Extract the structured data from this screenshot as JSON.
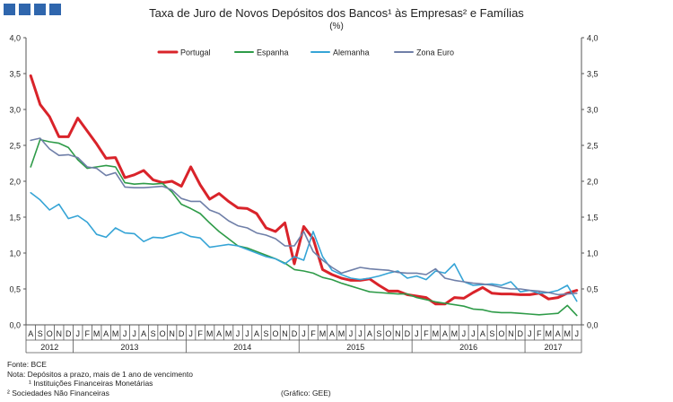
{
  "brand": {
    "logo": "GEE"
  },
  "chart_data": {
    "type": "line",
    "title": "Taxa de Juro de Novos Depósitos dos Bancos¹ às Empresas² e Famílias",
    "subtitle": "(%)",
    "ylim": [
      0,
      4
    ],
    "y_ticks": [
      "0,0",
      "0,5",
      "1,0",
      "1,5",
      "2,0",
      "2,5",
      "3,0",
      "3,5",
      "4,0"
    ],
    "month_labels": [
      "A",
      "S",
      "O",
      "N",
      "D",
      "J",
      "F",
      "M",
      "A",
      "M",
      "J",
      "J",
      "A",
      "S",
      "O",
      "N",
      "D",
      "J",
      "F",
      "M",
      "A",
      "M",
      "J",
      "J",
      "A",
      "S",
      "O",
      "N",
      "D",
      "J",
      "F",
      "M",
      "A",
      "M",
      "J",
      "J",
      "A",
      "S",
      "O",
      "N",
      "D",
      "J",
      "F",
      "M",
      "A",
      "M",
      "J",
      "J",
      "A",
      "S",
      "O",
      "N",
      "D",
      "J",
      "F",
      "M",
      "A",
      "M",
      "J"
    ],
    "years": [
      {
        "label": "2012",
        "start": 0,
        "end": 4
      },
      {
        "label": "2013",
        "start": 5,
        "end": 16
      },
      {
        "label": "2014",
        "start": 17,
        "end": 28
      },
      {
        "label": "2015",
        "start": 29,
        "end": 40
      },
      {
        "label": "2016",
        "start": 41,
        "end": 52
      },
      {
        "label": "2017",
        "start": 53,
        "end": 58
      }
    ],
    "series": [
      {
        "name": "Portugal",
        "color": "#d9232a",
        "width": 3,
        "values": [
          3.47,
          3.07,
          2.9,
          2.62,
          2.62,
          2.88,
          2.7,
          2.52,
          2.32,
          2.33,
          2.05,
          2.09,
          2.15,
          2.02,
          1.98,
          2.0,
          1.93,
          2.2,
          1.95,
          1.75,
          1.83,
          1.72,
          1.63,
          1.62,
          1.55,
          1.35,
          1.3,
          1.42,
          0.85,
          1.37,
          1.2,
          0.77,
          0.7,
          0.65,
          0.62,
          0.62,
          0.64,
          0.55,
          0.47,
          0.47,
          0.42,
          0.4,
          0.38,
          0.29,
          0.29,
          0.38,
          0.37,
          0.45,
          0.52,
          0.44,
          0.43,
          0.43,
          0.42,
          0.42,
          0.44,
          0.36,
          0.38,
          0.44,
          0.48
        ]
      },
      {
        "name": "Espanha",
        "color": "#2e9b48",
        "width": 1.6,
        "values": [
          2.2,
          2.58,
          2.55,
          2.53,
          2.47,
          2.3,
          2.18,
          2.2,
          2.22,
          2.2,
          1.98,
          1.96,
          1.97,
          1.96,
          1.97,
          1.85,
          1.68,
          1.62,
          1.55,
          1.42,
          1.3,
          1.2,
          1.1,
          1.07,
          1.02,
          0.97,
          0.92,
          0.86,
          0.77,
          0.75,
          0.72,
          0.66,
          0.63,
          0.58,
          0.54,
          0.5,
          0.46,
          0.45,
          0.44,
          0.43,
          0.43,
          0.38,
          0.35,
          0.32,
          0.3,
          0.28,
          0.26,
          0.22,
          0.21,
          0.18,
          0.17,
          0.17,
          0.16,
          0.15,
          0.14,
          0.15,
          0.16,
          0.27,
          0.13
        ]
      },
      {
        "name": "Alemanha",
        "color": "#35a4d6",
        "width": 1.6,
        "values": [
          1.84,
          1.74,
          1.6,
          1.68,
          1.48,
          1.52,
          1.43,
          1.26,
          1.22,
          1.35,
          1.28,
          1.27,
          1.16,
          1.22,
          1.21,
          1.25,
          1.29,
          1.23,
          1.21,
          1.08,
          1.1,
          1.12,
          1.1,
          1.05,
          1.0,
          0.95,
          0.92,
          0.85,
          0.95,
          0.9,
          1.3,
          0.95,
          0.76,
          0.7,
          0.65,
          0.63,
          0.65,
          0.68,
          0.72,
          0.75,
          0.65,
          0.68,
          0.63,
          0.75,
          0.72,
          0.85,
          0.6,
          0.55,
          0.56,
          0.57,
          0.55,
          0.6,
          0.46,
          0.48,
          0.44,
          0.45,
          0.48,
          0.55,
          0.33
        ]
      },
      {
        "name": "Zona Euro",
        "color": "#6f7fa8",
        "width": 1.6,
        "values": [
          2.57,
          2.6,
          2.45,
          2.36,
          2.37,
          2.33,
          2.2,
          2.18,
          2.08,
          2.12,
          1.92,
          1.91,
          1.91,
          1.92,
          1.93,
          1.88,
          1.76,
          1.72,
          1.72,
          1.6,
          1.55,
          1.45,
          1.38,
          1.35,
          1.28,
          1.25,
          1.2,
          1.1,
          1.1,
          1.3,
          1.02,
          0.9,
          0.8,
          0.72,
          0.76,
          0.8,
          0.78,
          0.77,
          0.76,
          0.73,
          0.72,
          0.72,
          0.7,
          0.78,
          0.65,
          0.62,
          0.6,
          0.58,
          0.57,
          0.55,
          0.52,
          0.5,
          0.5,
          0.48,
          0.47,
          0.45,
          0.42,
          0.43,
          0.44
        ]
      }
    ]
  },
  "notes": {
    "source": "Fonte: BCE",
    "note": "Nota: Depósitos a prazo, mais de 1 ano de vencimento",
    "fn1": "¹ Instituições Financeiras Monetárias",
    "fn2": "² Sociedades Não Financeiras",
    "credit": "(Gráfico: GEE)"
  }
}
